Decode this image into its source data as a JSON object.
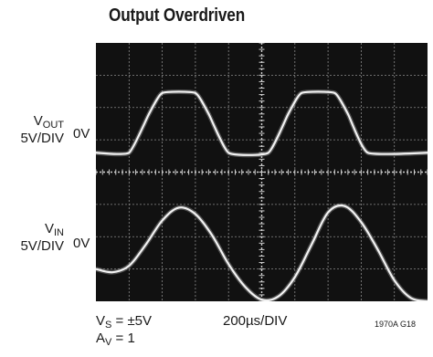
{
  "title": "Output Overdriven",
  "chart_data": {
    "type": "line",
    "title": "Output Overdriven",
    "grid": true,
    "divisions": {
      "x": 10,
      "y": 8
    },
    "channels": [
      {
        "name_main": "V",
        "name_sub": "OUT",
        "scale": "5V/DIV",
        "zero_label": "0V"
      },
      {
        "name_main": "V",
        "name_sub": "IN",
        "scale": "5V/DIV",
        "zero_label": "0V"
      }
    ],
    "series": [
      {
        "name": "VOUT",
        "x_div": [
          0,
          1.0,
          1.6,
          2.0,
          3.0,
          3.4,
          4.0,
          5.2,
          5.8,
          6.2,
          7.2,
          7.6,
          8.2,
          10
        ],
        "y_div": [
          0,
          0,
          1.2,
          1.85,
          1.85,
          1.2,
          0,
          0,
          1.2,
          1.85,
          1.85,
          1.2,
          0,
          0
        ]
      },
      {
        "name": "VIN",
        "x_div": [
          0,
          0.5,
          1.0,
          1.5,
          2.0,
          2.5,
          3.0,
          3.5,
          4.0,
          4.5,
          5.0,
          5.5,
          6.0,
          6.5,
          7.0,
          7.5,
          8.0,
          8.5,
          9.0,
          9.5,
          10
        ],
        "y_div": [
          0,
          -0.1,
          0.1,
          0.75,
          1.5,
          1.9,
          1.7,
          1.05,
          0.15,
          -0.55,
          -0.95,
          -0.85,
          -0.25,
          0.75,
          1.75,
          1.95,
          1.45,
          0.6,
          -0.35,
          -0.9,
          -1.0
        ]
      }
    ],
    "conditions": {
      "vs_main": "V",
      "vs_sub": "S",
      "vs_value": " = ±5V",
      "av_main": "A",
      "av_sub": "V",
      "av_value": " = 1"
    },
    "timebase": "200µs/DIV",
    "figure_id": "1970A G18"
  }
}
